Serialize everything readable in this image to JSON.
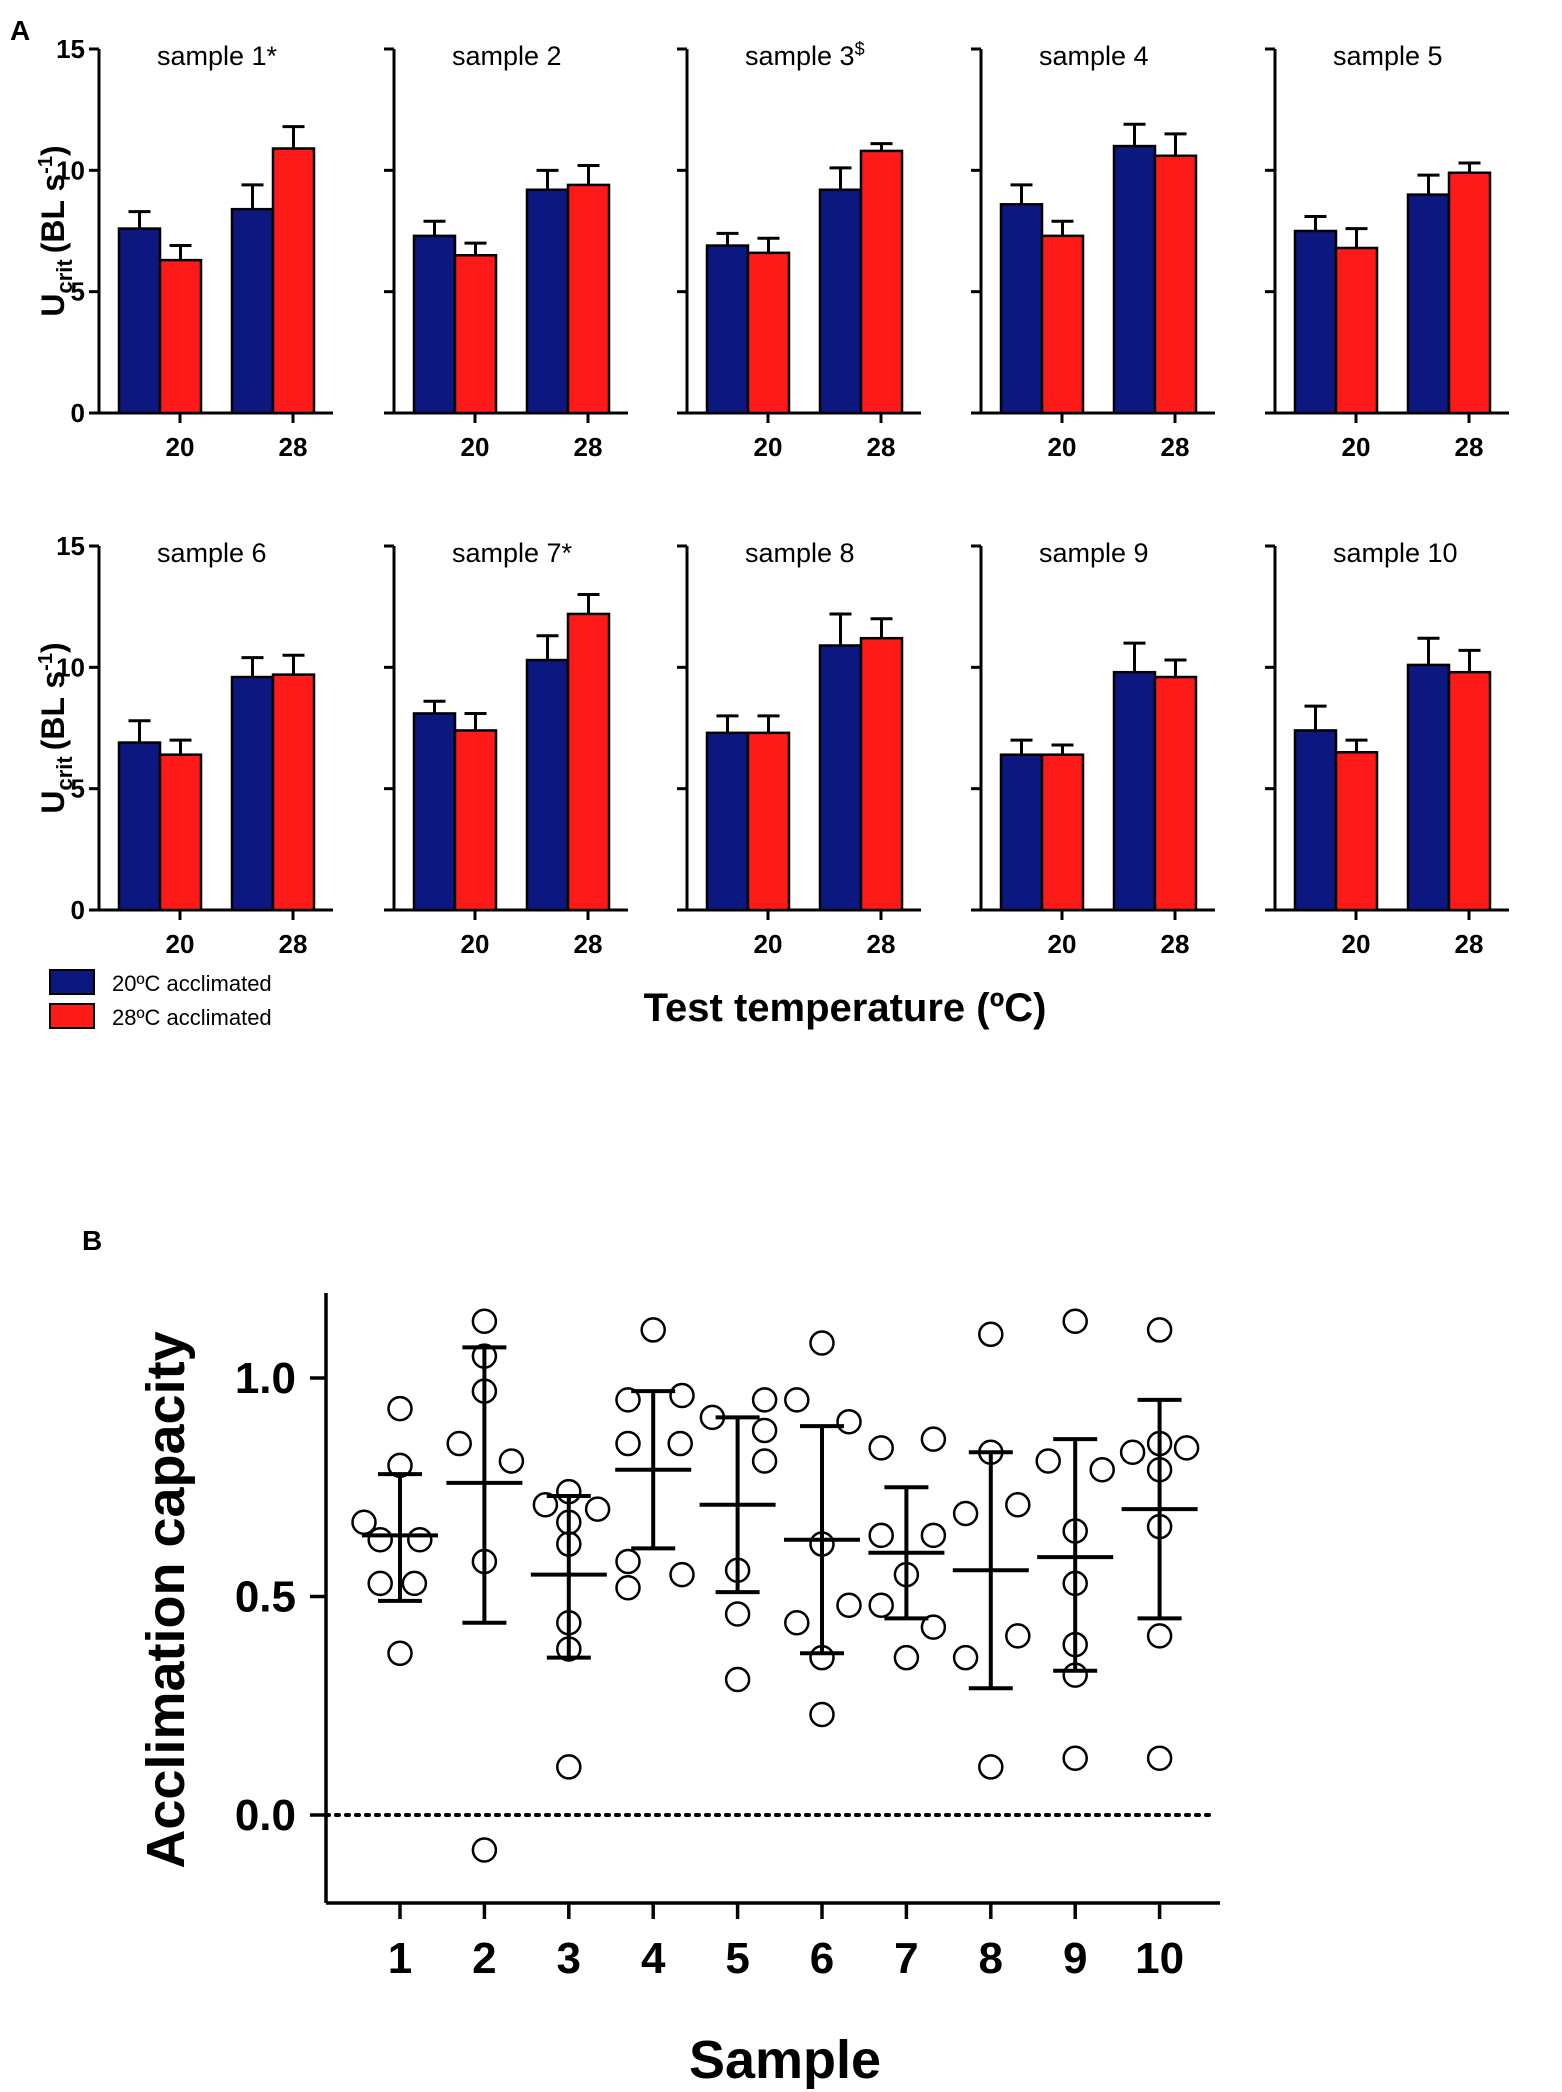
{
  "figure": {
    "panel_a_label": "A",
    "panel_b_label": "B",
    "legend": [
      {
        "label": "20ºC acclimated",
        "color": "#0d1780"
      },
      {
        "label": "28ºC acclimated",
        "color": "#ff1a1a"
      }
    ]
  },
  "chart_data": [
    {
      "panel": "A",
      "type": "bar",
      "ylabel_main": "U",
      "ylabel_sub": "crit",
      "ylabel_units": "(BL s",
      "ylabel_units_sup": "-1",
      "ylabel_units_close": ")",
      "xlabel": "Test temperature (ºC)",
      "ylim": [
        0,
        15
      ],
      "yticks": [
        "0",
        "5",
        "10",
        "15"
      ],
      "categories": [
        "20",
        "28"
      ],
      "series_names": [
        "20ºC acclimated",
        "28ºC acclimated"
      ],
      "colors": [
        "#0d1780",
        "#ff1a1a"
      ],
      "subplots": [
        {
          "title": "sample 1*",
          "title_sup": "",
          "values_20acc": [
            7.6,
            8.4
          ],
          "values_28acc": [
            6.3,
            10.9
          ],
          "err_20acc": [
            0.7,
            1.0
          ],
          "err_28acc": [
            0.6,
            0.9
          ]
        },
        {
          "title": "sample 2",
          "title_sup": "",
          "values_20acc": [
            7.3,
            9.2
          ],
          "values_28acc": [
            6.5,
            9.4
          ],
          "err_20acc": [
            0.6,
            0.8
          ],
          "err_28acc": [
            0.5,
            0.8
          ]
        },
        {
          "title": "sample 3",
          "title_sup": "$",
          "values_20acc": [
            6.9,
            9.2
          ],
          "values_28acc": [
            6.6,
            10.8
          ],
          "err_20acc": [
            0.5,
            0.9
          ],
          "err_28acc": [
            0.6,
            0.3
          ]
        },
        {
          "title": "sample 4",
          "title_sup": "",
          "values_20acc": [
            8.6,
            11.0
          ],
          "values_28acc": [
            7.3,
            10.6
          ],
          "err_20acc": [
            0.8,
            0.9
          ],
          "err_28acc": [
            0.6,
            0.9
          ]
        },
        {
          "title": "sample 5",
          "title_sup": "",
          "values_20acc": [
            7.5,
            9.0
          ],
          "values_28acc": [
            6.8,
            9.9
          ],
          "err_20acc": [
            0.6,
            0.8
          ],
          "err_28acc": [
            0.8,
            0.4
          ]
        },
        {
          "title": "sample 6",
          "title_sup": "",
          "values_20acc": [
            6.9,
            9.6
          ],
          "values_28acc": [
            6.4,
            9.7
          ],
          "err_20acc": [
            0.9,
            0.8
          ],
          "err_28acc": [
            0.6,
            0.8
          ]
        },
        {
          "title": "sample 7*",
          "title_sup": "",
          "values_20acc": [
            8.1,
            10.3
          ],
          "values_28acc": [
            7.4,
            12.2
          ],
          "err_20acc": [
            0.5,
            1.0
          ],
          "err_28acc": [
            0.7,
            0.8
          ]
        },
        {
          "title": "sample 8",
          "title_sup": "",
          "values_20acc": [
            7.3,
            10.9
          ],
          "values_28acc": [
            7.3,
            11.2
          ],
          "err_20acc": [
            0.7,
            1.3
          ],
          "err_28acc": [
            0.7,
            0.8
          ]
        },
        {
          "title": "sample 9",
          "title_sup": "",
          "values_20acc": [
            6.4,
            9.8
          ],
          "values_28acc": [
            6.4,
            9.6
          ],
          "err_20acc": [
            0.6,
            1.2
          ],
          "err_28acc": [
            0.4,
            0.7
          ]
        },
        {
          "title": "sample 10",
          "title_sup": "",
          "values_20acc": [
            7.4,
            10.1
          ],
          "values_28acc": [
            6.5,
            9.8
          ],
          "err_20acc": [
            1.0,
            1.1
          ],
          "err_28acc": [
            0.5,
            0.9
          ]
        }
      ]
    },
    {
      "panel": "B",
      "type": "scatter",
      "ylabel": "Acclimation capacity",
      "xlabel": "Sample",
      "ylim": [
        -0.2,
        1.2
      ],
      "yticks": [
        "0.0",
        "0.5",
        "1.0"
      ],
      "reference_line": 0.0,
      "categories": [
        "1",
        "2",
        "3",
        "4",
        "5",
        "6",
        "7",
        "8",
        "9",
        "10"
      ],
      "means": [
        0.64,
        0.76,
        0.55,
        0.79,
        0.71,
        0.63,
        0.6,
        0.56,
        0.59,
        0.7
      ],
      "sd_upper": [
        0.78,
        1.07,
        0.73,
        0.97,
        0.91,
        0.89,
        0.75,
        0.83,
        0.86,
        0.95
      ],
      "sd_lower": [
        0.49,
        0.44,
        0.36,
        0.61,
        0.51,
        0.37,
        0.45,
        0.29,
        0.33,
        0.45
      ],
      "points": [
        [
          [
            -0.4,
            0.67
          ],
          [
            0.0,
            0.93
          ],
          [
            0.0,
            0.8
          ],
          [
            -0.22,
            0.63
          ],
          [
            0.22,
            0.63
          ],
          [
            -0.22,
            0.53
          ],
          [
            0.16,
            0.53
          ],
          [
            0.0,
            0.37
          ]
        ],
        [
          [
            0.0,
            1.13
          ],
          [
            0.0,
            1.05
          ],
          [
            0.0,
            0.97
          ],
          [
            -0.28,
            0.85
          ],
          [
            0.3,
            0.81
          ],
          [
            0.0,
            0.58
          ],
          [
            0.0,
            -0.08
          ]
        ],
        [
          [
            -0.26,
            0.71
          ],
          [
            0.0,
            0.74
          ],
          [
            0.32,
            0.7
          ],
          [
            0.0,
            0.67
          ],
          [
            0.0,
            0.62
          ],
          [
            0.0,
            0.44
          ],
          [
            0.0,
            0.38
          ],
          [
            0.0,
            0.11
          ]
        ],
        [
          [
            0.0,
            1.11
          ],
          [
            -0.28,
            0.95
          ],
          [
            0.32,
            0.96
          ],
          [
            -0.28,
            0.85
          ],
          [
            0.3,
            0.85
          ],
          [
            -0.28,
            0.58
          ],
          [
            -0.28,
            0.52
          ],
          [
            0.32,
            0.55
          ]
        ],
        [
          [
            -0.28,
            0.91
          ],
          [
            0.3,
            0.95
          ],
          [
            0.3,
            0.88
          ],
          [
            0.3,
            0.81
          ],
          [
            0.0,
            0.56
          ],
          [
            0.0,
            0.46
          ],
          [
            0.0,
            0.31
          ]
        ],
        [
          [
            0.0,
            1.08
          ],
          [
            -0.28,
            0.95
          ],
          [
            0.3,
            0.9
          ],
          [
            0.0,
            0.62
          ],
          [
            -0.28,
            0.44
          ],
          [
            0.3,
            0.48
          ],
          [
            0.0,
            0.36
          ],
          [
            0.0,
            0.23
          ]
        ],
        [
          [
            -0.28,
            0.84
          ],
          [
            0.3,
            0.86
          ],
          [
            -0.28,
            0.64
          ],
          [
            0.3,
            0.64
          ],
          [
            0.0,
            0.55
          ],
          [
            -0.28,
            0.48
          ],
          [
            0.3,
            0.43
          ],
          [
            0.0,
            0.36
          ]
        ],
        [
          [
            0.0,
            1.1
          ],
          [
            0.0,
            0.83
          ],
          [
            -0.28,
            0.69
          ],
          [
            0.3,
            0.71
          ],
          [
            0.3,
            0.41
          ],
          [
            -0.28,
            0.36
          ],
          [
            0.0,
            0.11
          ]
        ],
        [
          [
            0.0,
            1.13
          ],
          [
            -0.3,
            0.81
          ],
          [
            0.3,
            0.79
          ],
          [
            0.0,
            0.65
          ],
          [
            0.0,
            0.53
          ],
          [
            0.0,
            0.39
          ],
          [
            0.0,
            0.32
          ],
          [
            0.0,
            0.13
          ]
        ],
        [
          [
            0.0,
            1.11
          ],
          [
            -0.3,
            0.83
          ],
          [
            0.0,
            0.85
          ],
          [
            0.3,
            0.84
          ],
          [
            0.0,
            0.79
          ],
          [
            0.0,
            0.66
          ],
          [
            0.0,
            0.41
          ],
          [
            0.0,
            0.13
          ]
        ]
      ]
    }
  ]
}
